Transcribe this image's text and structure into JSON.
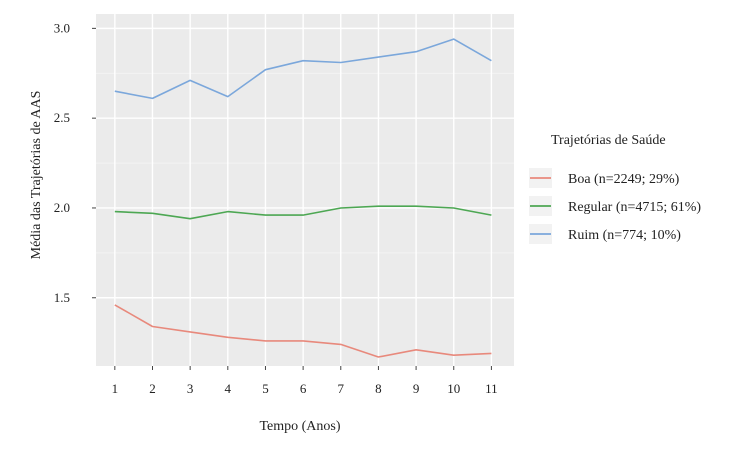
{
  "chart_data": {
    "type": "line",
    "title": "",
    "xlabel": "Tempo (Anos)",
    "ylabel": "Média das Trajetórias de AAS",
    "x": [
      1,
      2,
      3,
      4,
      5,
      6,
      7,
      8,
      9,
      10,
      11
    ],
    "x_tick_labels": [
      "1",
      "2",
      "3",
      "4",
      "5",
      "6",
      "7",
      "8",
      "9",
      "10",
      "11"
    ],
    "y_ticks": [
      1.5,
      2.0,
      2.5,
      3.0
    ],
    "y_tick_labels": [
      "1.5",
      "2.0",
      "2.5",
      "3.0"
    ],
    "ylim": [
      1.12,
      3.08
    ],
    "xlim": [
      0.5,
      11.6
    ],
    "grid": true,
    "legend": {
      "title": "Trajetórias de Saúde",
      "position": "right"
    },
    "series": [
      {
        "name": "Boa (n=2249; 29%)",
        "color": "#E8897C",
        "values": [
          1.46,
          1.34,
          1.31,
          1.28,
          1.26,
          1.26,
          1.24,
          1.17,
          1.21,
          1.18,
          1.19
        ]
      },
      {
        "name": "Regular (n=4715; 61%)",
        "color": "#4DA753",
        "values": [
          1.98,
          1.97,
          1.94,
          1.98,
          1.96,
          1.96,
          2.0,
          2.01,
          2.01,
          2.0,
          1.96
        ]
      },
      {
        "name": "Ruim (n=774; 10%)",
        "color": "#7BA7DB",
        "values": [
          2.65,
          2.61,
          2.71,
          2.62,
          2.77,
          2.82,
          2.81,
          2.84,
          2.87,
          2.94,
          2.82
        ]
      }
    ]
  }
}
